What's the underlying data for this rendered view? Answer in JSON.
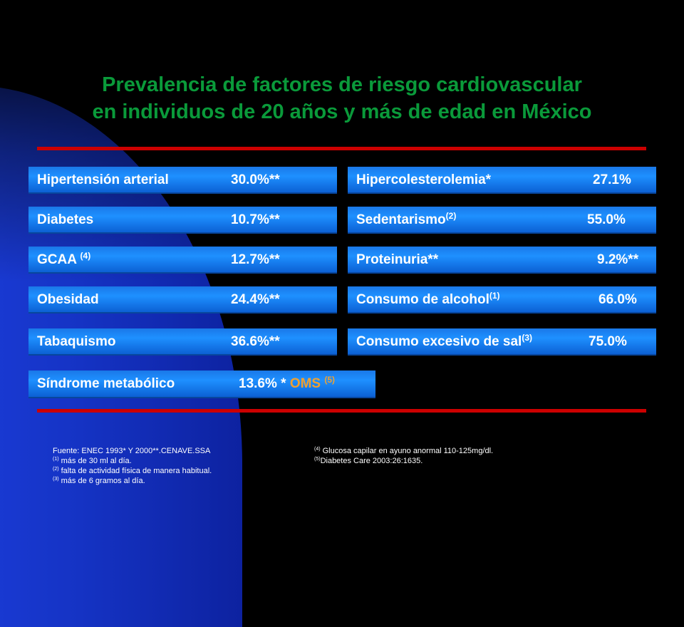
{
  "title": {
    "line1": "Prevalencia de factores de riesgo cardiovascular",
    "line2": "en individuos de 20 años y más de edad en México"
  },
  "left_bars": [
    {
      "label": "Hipertensión arterial",
      "sup": "",
      "value": "30.0%**"
    },
    {
      "label": "Diabetes",
      "sup": "",
      "value": "10.7%**"
    },
    {
      "label": "GCAA",
      "sup": "(4)",
      "value": "12.7%**"
    },
    {
      "label": "Obesidad",
      "sup": "",
      "value": "24.4%**"
    },
    {
      "label": "Tabaquismo",
      "sup": "",
      "value": "36.6%**"
    }
  ],
  "right_bars": [
    {
      "label": "Hipercolesterolemia*",
      "sup": "",
      "value": "27.1%"
    },
    {
      "label": "Sedentarismo",
      "sup": "(2)",
      "value": "55.0%"
    },
    {
      "label": "Proteinuria**",
      "sup": "",
      "value": "9.2%**"
    },
    {
      "label": "Consumo de alcohol",
      "sup": "(1)",
      "value": "66.0%"
    },
    {
      "label": "Consumo excesivo de sal",
      "sup": "(3)",
      "value": "75.0%"
    }
  ],
  "metabolic": {
    "label": "Síndrome metabólico",
    "value": "13.6% *",
    "oms": "OMS",
    "oms_sup": "(5)"
  },
  "footnotes_left": {
    "source": "Fuente: ENEC 1993* Y 2000**.CENAVE.SSA",
    "n1_mark": "(1)",
    "n1": "más de 30 ml al día.",
    "n2_mark": "(2)",
    "n2": "falta de actividad física de manera habitual.",
    "n3_mark": "(3)",
    "n3": "más de 6 gramos al día."
  },
  "footnotes_right": {
    "n4_mark": "(4)",
    "n4": "Glucosa capilar en ayuno anormal 110-125mg/dl.",
    "n5_mark": "(5)",
    "n5": "Diabetes Care 2003:26:1635."
  },
  "colors": {
    "title": "#0a9a3a",
    "rule": "#cc0000",
    "bar": "#1e90ff",
    "oms": "#f0a030",
    "background": "#000000"
  }
}
